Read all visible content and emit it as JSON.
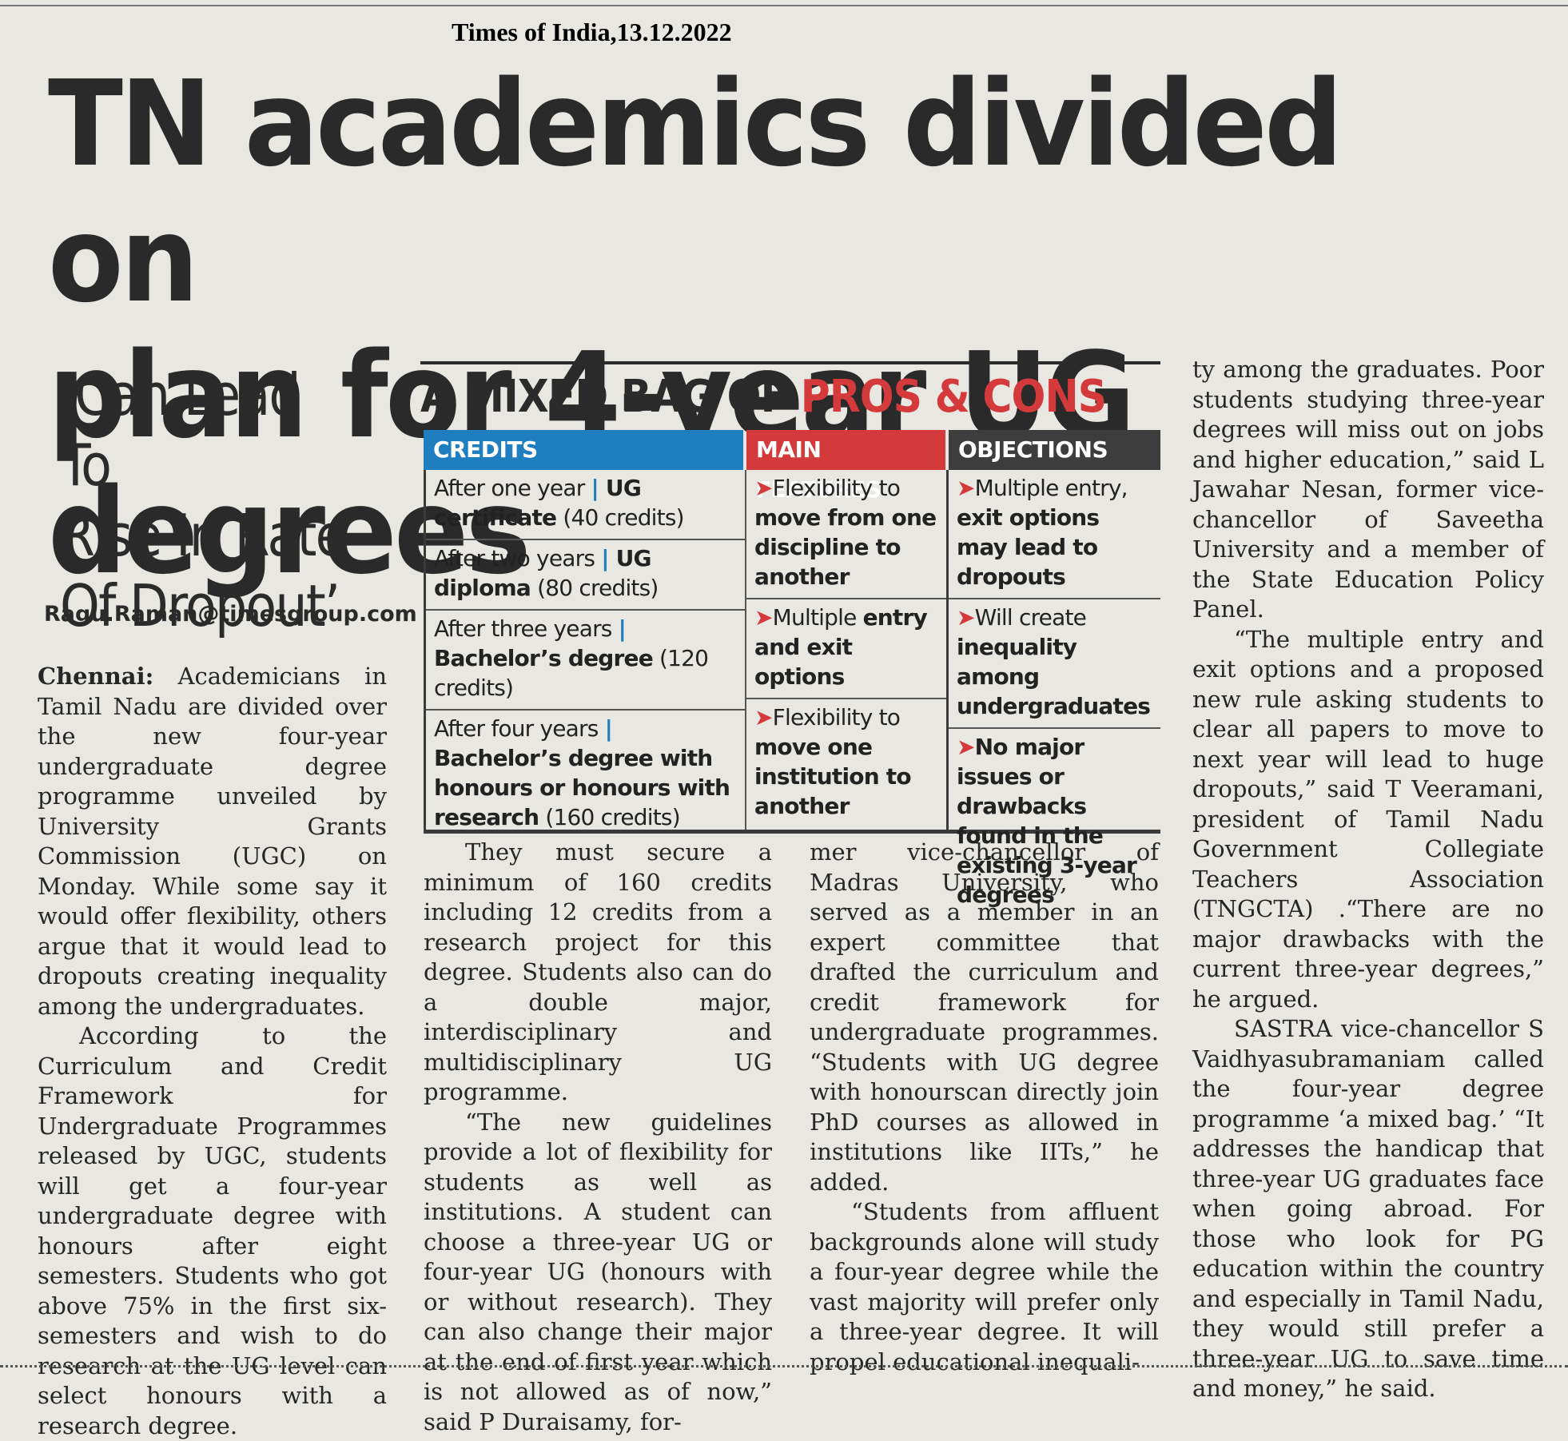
{
  "source": "Times of India,13.12.2022",
  "headline": {
    "line1": "TN academics divided on",
    "line2": "plan for 4-year UG degrees"
  },
  "subhead": {
    "line1": "‘Can Lead To",
    "line2": "Rise In Rate",
    "line3": "Of Dropout’"
  },
  "byline": "Ragu.Raman@timesgroup.com",
  "box": {
    "title_plain": "A MIXED BAG OF ",
    "title_accent": "PROS & CONS",
    "headers": [
      "CREDITS",
      "MAIN FEATURES",
      "OBJECTIONS"
    ],
    "credits": [
      {
        "pre": "After one year ",
        "sep": "| ",
        "bold": "UG certificate",
        "post": " (40 credits)"
      },
      {
        "pre": "After two years ",
        "sep": "| ",
        "bold": "UG diploma",
        "post": " (80 credits)"
      },
      {
        "pre": "After three years ",
        "sep": "| ",
        "bold": "Bachelor’s degree",
        "post": " (120 credits)"
      },
      {
        "pre": "After four years ",
        "sep": "| ",
        "bold": "Bachelor’s degree with honours or honours with research",
        "post": " (160 credits)"
      }
    ],
    "features": [
      {
        "arrow": "➤",
        "plain": "Flexibility to ",
        "bold": "move from one discipline to another"
      },
      {
        "arrow": "➤",
        "plain": "Multiple ",
        "bold": "entry and exit options"
      },
      {
        "arrow": "➤",
        "plain": "Flexibility to ",
        "bold": "move one institution to another"
      }
    ],
    "objections": [
      {
        "arrow": "➤",
        "plain": "Multiple entry, ",
        "bold": "exit options may lead to dropouts"
      },
      {
        "arrow": "➤",
        "plain": "Will create ",
        "bold": "inequality among undergraduates"
      },
      {
        "arrow": "➤",
        "plain": "",
        "bold": "No major issues or drawbacks found in the existing 3-year degrees"
      }
    ]
  },
  "body": {
    "dateline": "Chennai:",
    "col1": [
      " Academicians in Tamil Nadu are divided over the new four-year undergraduate degree programme unveiled by University Grants Commission (UGC) on Monday. While some say it would offer flexibility, others argue that it would lead to dropouts creating inequality among the undergraduates.",
      "According to the Curriculum and Credit Framework for Undergraduate Programmes released by UGC, students will get a four-year undergraduate degree with honours after eight semesters. Students who got above 75% in the first six-semesters and wish to do research at the UG level can select honours with a research degree."
    ],
    "col2": [
      "They must secure a minimum of 160 credits including 12 credits from a research project for this degree. Students also can do a double major, interdisciplinary and multidisciplinary UG programme.",
      "“The new guidelines provide a lot of flexibility for students as well as institutions. A student can choose a three-year UG or four-year UG (honours with or without research). They can also change their major at the end of first year which is not allowed as of now,” said P Duraisamy, for-"
    ],
    "col3": [
      "mer vice-chancellor of Madras University, who served as a member in an expert committee that drafted the curriculum and credit framework for undergraduate programmes. “Students with UG degree with honourscan directly join PhD courses as allowed in institutions like IITs,” he added.",
      "“Students from affluent backgrounds alone will study a four-year degree while the vast majority will prefer only a three-year degree. It will propel educational inequali-"
    ],
    "col4": [
      "ty among the graduates. Poor students studying three-year degrees will miss out on jobs and higher education,” said L Jawahar Nesan, former vice-chancellor of Saveetha University and a member of the State Education Policy Panel.",
      "“The multiple entry and exit options and a proposed new rule asking students to clear all papers to move to next year will lead to huge dropouts,” said T Veeramani, president of Tamil Nadu Government Collegiate Teachers Association (TNGCTA) .“There are no major drawbacks with the current three-year degrees,” he argued.",
      "SASTRA vice-chancellor S Vaidhyasubramaniam called the four-year degree programme ‘a mixed bag.’ “It addresses the handicap that three-year UG graduates face when going abroad. For those who look for PG education within the country and especially in Tamil Nadu, they would still prefer a three-year UG to save time and money,” he said."
    ]
  }
}
